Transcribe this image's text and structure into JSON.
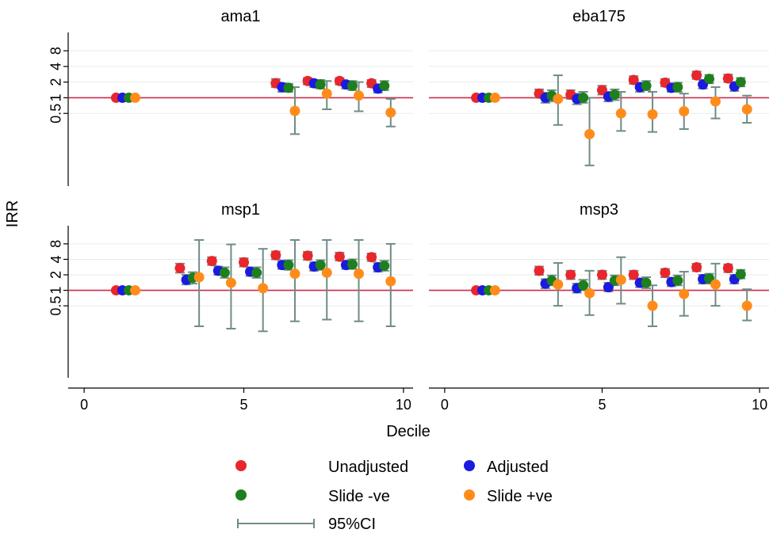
{
  "chart_data": {
    "type": "scatter",
    "facets": [
      "ama1",
      "eba175",
      "msp1",
      "msp3"
    ],
    "xlabel": "Decile",
    "ylabel": "IRR",
    "y_scale": "log",
    "xlim": [
      -0.5,
      10.3
    ],
    "ylim": [
      0.02,
      18
    ],
    "x_ticks": [
      0,
      5,
      10
    ],
    "y_ticks": [
      0.5,
      1,
      2,
      4,
      8
    ],
    "y_tick_labels": [
      "0.5",
      "1",
      "2",
      "4",
      "8"
    ],
    "reference_line_y": 1,
    "reference_line_color": "#cc2b4f",
    "ci_color": "#6f8c86",
    "series_colors": {
      "unadjusted": "#e8262b",
      "adjusted": "#1a1ae0",
      "slide_neg": "#1d7f1d",
      "slide_pos": "#ff8c1a"
    },
    "legend": {
      "position": "bottom",
      "entries": [
        {
          "key": "unadjusted",
          "label": "Unadjusted"
        },
        {
          "key": "adjusted",
          "label": "Adjusted"
        },
        {
          "key": "slide_neg",
          "label": "Slide -ve"
        },
        {
          "key": "slide_pos",
          "label": "Slide +ve"
        }
      ],
      "ci_label": "95%CI"
    },
    "panels": [
      {
        "name": "ama1",
        "series": [
          {
            "key": "unadjusted",
            "points": [
              {
                "x": 1,
                "y": 1,
                "lo": 1,
                "hi": 1
              },
              {
                "x": 6,
                "y": 1.9,
                "lo": 1.6,
                "hi": 2.3
              },
              {
                "x": 7,
                "y": 2.1,
                "lo": 1.8,
                "hi": 2.4
              },
              {
                "x": 8,
                "y": 2.1,
                "lo": 1.8,
                "hi": 2.4
              },
              {
                "x": 9,
                "y": 1.9,
                "lo": 1.6,
                "hi": 2.2
              }
            ]
          },
          {
            "key": "adjusted",
            "points": [
              {
                "x": 1.2,
                "y": 1,
                "lo": 1,
                "hi": 1
              },
              {
                "x": 6.2,
                "y": 1.6,
                "lo": 1.3,
                "hi": 1.9
              },
              {
                "x": 7.2,
                "y": 1.9,
                "lo": 1.6,
                "hi": 2.2
              },
              {
                "x": 8.2,
                "y": 1.8,
                "lo": 1.5,
                "hi": 2.1
              },
              {
                "x": 9.2,
                "y": 1.5,
                "lo": 1.25,
                "hi": 1.8
              }
            ]
          },
          {
            "key": "slide_neg",
            "points": [
              {
                "x": 1.4,
                "y": 1,
                "lo": 1,
                "hi": 1
              },
              {
                "x": 6.4,
                "y": 1.55,
                "lo": 1.3,
                "hi": 1.85
              },
              {
                "x": 7.4,
                "y": 1.8,
                "lo": 1.5,
                "hi": 2.2
              },
              {
                "x": 8.4,
                "y": 1.7,
                "lo": 1.4,
                "hi": 2.1
              },
              {
                "x": 9.4,
                "y": 1.7,
                "lo": 1.4,
                "hi": 2.1
              }
            ]
          },
          {
            "key": "slide_pos",
            "points": [
              {
                "x": 1.6,
                "y": 1,
                "lo": 1,
                "hi": 1
              },
              {
                "x": 6.6,
                "y": 0.56,
                "lo": 0.2,
                "hi": 1.6
              },
              {
                "x": 7.6,
                "y": 1.2,
                "lo": 0.6,
                "hi": 2.1
              },
              {
                "x": 8.6,
                "y": 1.1,
                "lo": 0.55,
                "hi": 2.0
              },
              {
                "x": 9.6,
                "y": 0.52,
                "lo": 0.28,
                "hi": 0.95
              }
            ]
          }
        ]
      },
      {
        "name": "eba175",
        "series": [
          {
            "key": "unadjusted",
            "points": [
              {
                "x": 1,
                "y": 1,
                "lo": 1,
                "hi": 1
              },
              {
                "x": 3,
                "y": 1.2,
                "lo": 1.0,
                "hi": 1.45
              },
              {
                "x": 4,
                "y": 1.15,
                "lo": 0.95,
                "hi": 1.4
              },
              {
                "x": 5,
                "y": 1.4,
                "lo": 1.15,
                "hi": 1.7
              },
              {
                "x": 6,
                "y": 2.2,
                "lo": 1.85,
                "hi": 2.6
              },
              {
                "x": 7,
                "y": 1.95,
                "lo": 1.65,
                "hi": 2.3
              },
              {
                "x": 8,
                "y": 2.7,
                "lo": 2.3,
                "hi": 3.2
              },
              {
                "x": 9,
                "y": 2.35,
                "lo": 2.0,
                "hi": 2.8
              }
            ]
          },
          {
            "key": "adjusted",
            "points": [
              {
                "x": 1.2,
                "y": 1,
                "lo": 1,
                "hi": 1
              },
              {
                "x": 3.2,
                "y": 1.0,
                "lo": 0.8,
                "hi": 1.25
              },
              {
                "x": 4.2,
                "y": 0.95,
                "lo": 0.75,
                "hi": 1.2
              },
              {
                "x": 5.2,
                "y": 1.05,
                "lo": 0.85,
                "hi": 1.3
              },
              {
                "x": 6.2,
                "y": 1.6,
                "lo": 1.3,
                "hi": 1.9
              },
              {
                "x": 7.2,
                "y": 1.55,
                "lo": 1.3,
                "hi": 1.85
              },
              {
                "x": 8.2,
                "y": 1.8,
                "lo": 1.5,
                "hi": 2.2
              },
              {
                "x": 9.2,
                "y": 1.65,
                "lo": 1.35,
                "hi": 2.0
              }
            ]
          },
          {
            "key": "slide_neg",
            "points": [
              {
                "x": 1.4,
                "y": 1,
                "lo": 1,
                "hi": 1
              },
              {
                "x": 3.4,
                "y": 1.1,
                "lo": 0.85,
                "hi": 1.4
              },
              {
                "x": 4.4,
                "y": 1.0,
                "lo": 0.8,
                "hi": 1.3
              },
              {
                "x": 5.4,
                "y": 1.15,
                "lo": 0.9,
                "hi": 1.45
              },
              {
                "x": 6.4,
                "y": 1.7,
                "lo": 1.4,
                "hi": 2.1
              },
              {
                "x": 7.4,
                "y": 1.6,
                "lo": 1.3,
                "hi": 1.95
              },
              {
                "x": 8.4,
                "y": 2.3,
                "lo": 1.9,
                "hi": 2.75
              },
              {
                "x": 9.4,
                "y": 2.0,
                "lo": 1.65,
                "hi": 2.4
              }
            ]
          },
          {
            "key": "slide_pos",
            "points": [
              {
                "x": 1.6,
                "y": 1,
                "lo": 1,
                "hi": 1
              },
              {
                "x": 3.6,
                "y": 0.95,
                "lo": 0.3,
                "hi": 2.7
              },
              {
                "x": 4.6,
                "y": 0.2,
                "lo": 0.05,
                "hi": 1.0
              },
              {
                "x": 5.6,
                "y": 0.5,
                "lo": 0.23,
                "hi": 1.3
              },
              {
                "x": 6.6,
                "y": 0.48,
                "lo": 0.22,
                "hi": 1.3
              },
              {
                "x": 7.6,
                "y": 0.55,
                "lo": 0.25,
                "hi": 1.2
              },
              {
                "x": 8.6,
                "y": 0.85,
                "lo": 0.4,
                "hi": 1.6
              },
              {
                "x": 9.6,
                "y": 0.6,
                "lo": 0.33,
                "hi": 1.1
              }
            ]
          }
        ]
      },
      {
        "name": "msp1",
        "series": [
          {
            "key": "unadjusted",
            "points": [
              {
                "x": 1,
                "y": 1,
                "lo": 1,
                "hi": 1
              },
              {
                "x": 3,
                "y": 2.7,
                "lo": 2.2,
                "hi": 3.3
              },
              {
                "x": 4,
                "y": 3.7,
                "lo": 3.1,
                "hi": 4.4
              },
              {
                "x": 5,
                "y": 3.5,
                "lo": 2.9,
                "hi": 4.2
              },
              {
                "x": 6,
                "y": 4.8,
                "lo": 4.0,
                "hi": 5.7
              },
              {
                "x": 7,
                "y": 4.7,
                "lo": 3.9,
                "hi": 5.6
              },
              {
                "x": 8,
                "y": 4.5,
                "lo": 3.8,
                "hi": 5.4
              },
              {
                "x": 9,
                "y": 4.4,
                "lo": 3.7,
                "hi": 5.2
              }
            ]
          },
          {
            "key": "adjusted",
            "points": [
              {
                "x": 1.2,
                "y": 1,
                "lo": 1,
                "hi": 1
              },
              {
                "x": 3.2,
                "y": 1.6,
                "lo": 1.3,
                "hi": 2.0
              },
              {
                "x": 4.2,
                "y": 2.4,
                "lo": 2.0,
                "hi": 2.9
              },
              {
                "x": 5.2,
                "y": 2.3,
                "lo": 1.9,
                "hi": 2.8
              },
              {
                "x": 6.2,
                "y": 3.1,
                "lo": 2.6,
                "hi": 3.7
              },
              {
                "x": 7.2,
                "y": 2.9,
                "lo": 2.4,
                "hi": 3.5
              },
              {
                "x": 8.2,
                "y": 3.1,
                "lo": 2.6,
                "hi": 3.7
              },
              {
                "x": 9.2,
                "y": 2.8,
                "lo": 2.3,
                "hi": 3.4
              }
            ]
          },
          {
            "key": "slide_neg",
            "points": [
              {
                "x": 1.4,
                "y": 1,
                "lo": 1,
                "hi": 1
              },
              {
                "x": 3.4,
                "y": 1.75,
                "lo": 1.35,
                "hi": 2.25
              },
              {
                "x": 4.4,
                "y": 2.2,
                "lo": 1.75,
                "hi": 2.8
              },
              {
                "x": 5.4,
                "y": 2.2,
                "lo": 1.75,
                "hi": 2.8
              },
              {
                "x": 6.4,
                "y": 3.1,
                "lo": 2.5,
                "hi": 3.85
              },
              {
                "x": 7.4,
                "y": 3.1,
                "lo": 2.5,
                "hi": 3.85
              },
              {
                "x": 8.4,
                "y": 3.2,
                "lo": 2.6,
                "hi": 4.0
              },
              {
                "x": 9.4,
                "y": 3.0,
                "lo": 2.4,
                "hi": 3.75
              }
            ]
          },
          {
            "key": "slide_pos",
            "points": [
              {
                "x": 1.6,
                "y": 1,
                "lo": 1,
                "hi": 1
              },
              {
                "x": 3.6,
                "y": 1.8,
                "lo": 0.2,
                "hi": 9.5
              },
              {
                "x": 4.6,
                "y": 1.4,
                "lo": 0.18,
                "hi": 7.8
              },
              {
                "x": 5.6,
                "y": 1.1,
                "lo": 0.16,
                "hi": 6.4
              },
              {
                "x": 6.6,
                "y": 2.1,
                "lo": 0.25,
                "hi": 9.5
              },
              {
                "x": 7.6,
                "y": 2.2,
                "lo": 0.27,
                "hi": 9.5
              },
              {
                "x": 8.6,
                "y": 2.1,
                "lo": 0.25,
                "hi": 9.5
              },
              {
                "x": 9.6,
                "y": 1.5,
                "lo": 0.2,
                "hi": 8.0
              }
            ]
          }
        ]
      },
      {
        "name": "msp3",
        "series": [
          {
            "key": "unadjusted",
            "points": [
              {
                "x": 1,
                "y": 1,
                "lo": 1,
                "hi": 1
              },
              {
                "x": 3,
                "y": 2.4,
                "lo": 2.0,
                "hi": 2.9
              },
              {
                "x": 4,
                "y": 2.0,
                "lo": 1.65,
                "hi": 2.4
              },
              {
                "x": 5,
                "y": 2.0,
                "lo": 1.65,
                "hi": 2.4
              },
              {
                "x": 6,
                "y": 2.0,
                "lo": 1.65,
                "hi": 2.4
              },
              {
                "x": 7,
                "y": 2.2,
                "lo": 1.8,
                "hi": 2.6
              },
              {
                "x": 8,
                "y": 2.8,
                "lo": 2.35,
                "hi": 3.3
              },
              {
                "x": 9,
                "y": 2.7,
                "lo": 2.25,
                "hi": 3.2
              }
            ]
          },
          {
            "key": "adjusted",
            "points": [
              {
                "x": 1.2,
                "y": 1,
                "lo": 1,
                "hi": 1
              },
              {
                "x": 3.2,
                "y": 1.35,
                "lo": 1.1,
                "hi": 1.65
              },
              {
                "x": 4.2,
                "y": 1.1,
                "lo": 0.9,
                "hi": 1.35
              },
              {
                "x": 5.2,
                "y": 1.15,
                "lo": 0.95,
                "hi": 1.4
              },
              {
                "x": 6.2,
                "y": 1.4,
                "lo": 1.15,
                "hi": 1.7
              },
              {
                "x": 7.2,
                "y": 1.45,
                "lo": 1.2,
                "hi": 1.75
              },
              {
                "x": 8.2,
                "y": 1.65,
                "lo": 1.35,
                "hi": 2.0
              },
              {
                "x": 9.2,
                "y": 1.65,
                "lo": 1.35,
                "hi": 2.0
              }
            ]
          },
          {
            "key": "slide_neg",
            "points": [
              {
                "x": 1.4,
                "y": 1,
                "lo": 1,
                "hi": 1
              },
              {
                "x": 3.4,
                "y": 1.55,
                "lo": 1.25,
                "hi": 1.95
              },
              {
                "x": 4.4,
                "y": 1.25,
                "lo": 1.0,
                "hi": 1.6
              },
              {
                "x": 5.4,
                "y": 1.55,
                "lo": 1.25,
                "hi": 1.95
              },
              {
                "x": 6.4,
                "y": 1.4,
                "lo": 1.1,
                "hi": 1.8
              },
              {
                "x": 7.4,
                "y": 1.55,
                "lo": 1.25,
                "hi": 1.95
              },
              {
                "x": 8.4,
                "y": 1.7,
                "lo": 1.35,
                "hi": 2.1
              },
              {
                "x": 9.4,
                "y": 2.05,
                "lo": 1.7,
                "hi": 2.5
              }
            ]
          },
          {
            "key": "slide_pos",
            "points": [
              {
                "x": 1.6,
                "y": 1,
                "lo": 1,
                "hi": 1
              },
              {
                "x": 3.6,
                "y": 1.3,
                "lo": 0.5,
                "hi": 3.4
              },
              {
                "x": 4.6,
                "y": 0.88,
                "lo": 0.33,
                "hi": 2.4
              },
              {
                "x": 5.6,
                "y": 1.6,
                "lo": 0.55,
                "hi": 4.4
              },
              {
                "x": 6.6,
                "y": 0.5,
                "lo": 0.2,
                "hi": 1.25
              },
              {
                "x": 7.6,
                "y": 0.85,
                "lo": 0.32,
                "hi": 2.3
              },
              {
                "x": 8.6,
                "y": 1.3,
                "lo": 0.5,
                "hi": 3.3
              },
              {
                "x": 9.6,
                "y": 0.5,
                "lo": 0.26,
                "hi": 1.05
              }
            ]
          }
        ]
      }
    ]
  }
}
